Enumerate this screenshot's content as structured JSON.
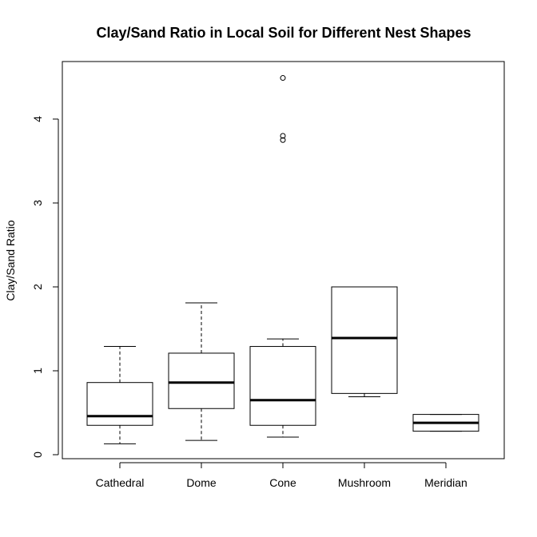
{
  "chart_data": {
    "type": "boxplot",
    "title": "Clay/Sand Ratio in Local Soil for Different Nest Shapes",
    "xlabel": "",
    "ylabel": "Clay/Sand Ratio",
    "ylim": [
      -0.05,
      4.7
    ],
    "yticks": [
      0,
      1,
      2,
      3,
      4
    ],
    "categories": [
      "Cathedral",
      "Dome",
      "Cone",
      "Mushroom",
      "Meridian"
    ],
    "boxes": [
      {
        "name": "Cathedral",
        "whisker_low": 0.13,
        "q1": 0.35,
        "median": 0.46,
        "q3": 0.86,
        "whisker_high": 1.29,
        "outliers": []
      },
      {
        "name": "Dome",
        "whisker_low": 0.17,
        "q1": 0.55,
        "median": 0.86,
        "q3": 1.21,
        "whisker_high": 1.81,
        "outliers": []
      },
      {
        "name": "Cone",
        "whisker_low": 0.21,
        "q1": 0.35,
        "median": 0.65,
        "q3": 1.29,
        "whisker_high": 1.38,
        "outliers": [
          3.75,
          3.8,
          4.49
        ]
      },
      {
        "name": "Mushroom",
        "whisker_low": 0.69,
        "q1": 0.73,
        "median": 1.39,
        "q3": 2.0,
        "whisker_high": 2.0,
        "outliers": []
      },
      {
        "name": "Meridian",
        "whisker_low": 0.28,
        "q1": 0.28,
        "median": 0.38,
        "q3": 0.48,
        "whisker_high": 0.48,
        "outliers": []
      }
    ],
    "grid": false,
    "legend": "none"
  }
}
